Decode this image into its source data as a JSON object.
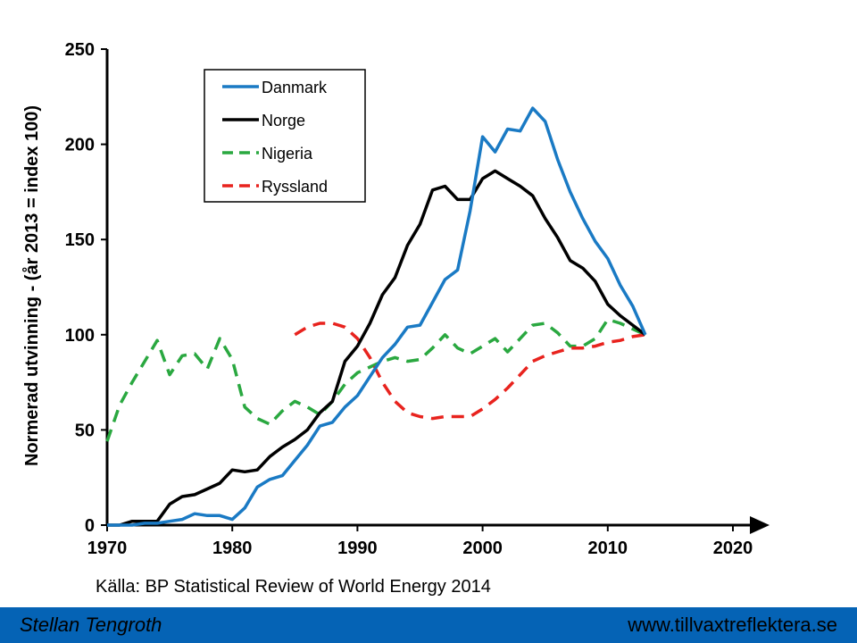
{
  "chart_data": {
    "type": "line",
    "ylabel": "Normerad utvinning - (år 2013 = index 100)",
    "xlabel": "",
    "xlim": [
      1970,
      2020
    ],
    "ylim": [
      0,
      250
    ],
    "x_ticks": [
      1970,
      1980,
      1990,
      2000,
      2010,
      2020
    ],
    "y_ticks": [
      0,
      50,
      100,
      150,
      200,
      250
    ],
    "grid": false,
    "legend_position": "top-left",
    "series": [
      {
        "name": "Danmark",
        "color": "#1a7ac4",
        "style": "solid",
        "x": [
          1970,
          1971,
          1972,
          1973,
          1974,
          1975,
          1976,
          1977,
          1978,
          1979,
          1980,
          1981,
          1982,
          1983,
          1984,
          1985,
          1986,
          1987,
          1988,
          1989,
          1990,
          1991,
          1992,
          1993,
          1994,
          1995,
          1996,
          1997,
          1998,
          1999,
          2000,
          2001,
          2002,
          2003,
          2004,
          2005,
          2006,
          2007,
          2008,
          2009,
          2010,
          2011,
          2012,
          2013
        ],
        "y": [
          0,
          0,
          0,
          1,
          1,
          2,
          3,
          6,
          5,
          5,
          3,
          9,
          20,
          24,
          26,
          34,
          42,
          52,
          54,
          62,
          68,
          78,
          88,
          95,
          104,
          105,
          117,
          129,
          134,
          165,
          204,
          196,
          208,
          207,
          219,
          212,
          192,
          175,
          161,
          149,
          140,
          126,
          115,
          100
        ]
      },
      {
        "name": "Norge",
        "color": "#000000",
        "style": "solid",
        "x": [
          1970,
          1971,
          1972,
          1973,
          1974,
          1975,
          1976,
          1977,
          1978,
          1979,
          1980,
          1981,
          1982,
          1983,
          1984,
          1985,
          1986,
          1987,
          1988,
          1989,
          1990,
          1991,
          1992,
          1993,
          1994,
          1995,
          1996,
          1997,
          1998,
          1999,
          2000,
          2001,
          2002,
          2003,
          2004,
          2005,
          2006,
          2007,
          2008,
          2009,
          2010,
          2011,
          2012,
          2013
        ],
        "y": [
          0,
          0,
          2,
          2,
          2,
          11,
          15,
          16,
          19,
          22,
          29,
          28,
          29,
          36,
          41,
          45,
          50,
          59,
          65,
          86,
          94,
          106,
          121,
          130,
          147,
          158,
          176,
          178,
          171,
          171,
          182,
          186,
          182,
          178,
          173,
          161,
          151,
          139,
          135,
          128,
          116,
          110,
          105,
          100
        ]
      },
      {
        "name": "Nigeria",
        "color": "#2aa840",
        "style": "dashed",
        "x": [
          1970,
          1971,
          1972,
          1973,
          1974,
          1975,
          1976,
          1977,
          1978,
          1979,
          1980,
          1981,
          1982,
          1983,
          1984,
          1985,
          1986,
          1987,
          1988,
          1989,
          1990,
          1991,
          1992,
          1993,
          1994,
          1995,
          1996,
          1997,
          1998,
          1999,
          2000,
          2001,
          2002,
          2003,
          2004,
          2005,
          2006,
          2007,
          2008,
          2009,
          2010,
          2011,
          2012,
          2013
        ],
        "y": [
          44,
          63,
          75,
          86,
          97,
          79,
          89,
          90,
          82,
          98,
          87,
          62,
          56,
          53,
          60,
          65,
          62,
          58,
          65,
          74,
          80,
          83,
          86,
          88,
          86,
          87,
          93,
          100,
          93,
          90,
          94,
          98,
          91,
          98,
          105,
          106,
          101,
          94,
          94,
          98,
          108,
          106,
          103,
          100
        ]
      },
      {
        "name": "Ryssland",
        "color": "#e8231e",
        "style": "dashed",
        "x": [
          1985,
          1986,
          1987,
          1988,
          1989,
          1990,
          1991,
          1992,
          1993,
          1994,
          1995,
          1996,
          1997,
          1998,
          1999,
          2000,
          2001,
          2002,
          2003,
          2004,
          2005,
          2006,
          2007,
          2008,
          2009,
          2010,
          2011,
          2012,
          2013
        ],
        "y": [
          100,
          104,
          106,
          106,
          104,
          98,
          88,
          75,
          65,
          59,
          57,
          56,
          57,
          57,
          57,
          61,
          66,
          72,
          79,
          86,
          89,
          91,
          93,
          93,
          94,
          96,
          97,
          99,
          100
        ]
      }
    ]
  },
  "source": "Källa: BP Statistical Review of World Energy 2014",
  "footer": {
    "author": "Stellan Tengroth",
    "website": "www.tillvaxtreflektera.se"
  }
}
